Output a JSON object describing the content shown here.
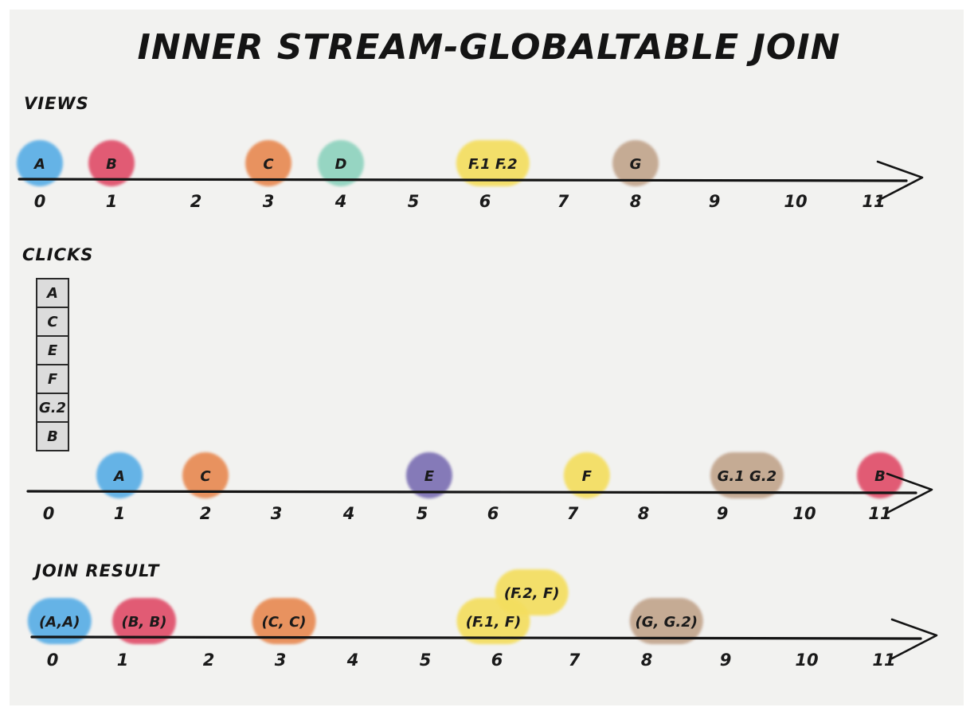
{
  "title": "Inner Stream-GlobalTABLE Join",
  "ticks": [
    "0",
    "1",
    "2",
    "3",
    "4",
    "5",
    "6",
    "7",
    "8",
    "9",
    "10",
    "11"
  ],
  "colors": {
    "blue": "#5aaee6",
    "red": "#e0506a",
    "orange": "#e88a52",
    "teal": "#8fd3bf",
    "yellow": "#f4de5e",
    "tan": "#c2a58d",
    "purple": "#7c6fb4"
  },
  "views": {
    "label": "Views",
    "events": [
      {
        "label": "A",
        "at": 0,
        "color": "blue"
      },
      {
        "label": "B",
        "at": 1,
        "color": "red"
      },
      {
        "label": "C",
        "at": 3,
        "color": "orange"
      },
      {
        "label": "D",
        "at": 4,
        "color": "teal"
      },
      {
        "label": "F.1  F.2",
        "at": 6.1,
        "color": "yellow",
        "wide": true
      },
      {
        "label": "G",
        "at": 8,
        "color": "tan"
      }
    ]
  },
  "clicks": {
    "label": "Clicks",
    "queue": [
      "A",
      "C",
      "E",
      "F",
      "G.2",
      "B"
    ],
    "events": [
      {
        "label": "A",
        "at": 1,
        "color": "blue"
      },
      {
        "label": "C",
        "at": 2,
        "color": "orange"
      },
      {
        "label": "E",
        "at": 5.1,
        "color": "purple"
      },
      {
        "label": "F",
        "at": 7.2,
        "color": "yellow"
      },
      {
        "label": "G.1  G.2",
        "at": 9.3,
        "color": "tan",
        "wide": true
      },
      {
        "label": "B",
        "at": 11,
        "color": "red"
      }
    ]
  },
  "join_result": {
    "label": "Join Result",
    "events": [
      {
        "label": "(A,A)",
        "at": 0.1,
        "color": "blue",
        "wide": true
      },
      {
        "label": "(B, B)",
        "at": 1.25,
        "color": "red",
        "wide": true
      },
      {
        "label": "(C, C)",
        "at": 3.05,
        "color": "orange",
        "wide": true
      },
      {
        "label": "(F.1, F)",
        "at": 5.95,
        "color": "yellow",
        "wide": true
      },
      {
        "label": "(F.2, F)",
        "at": 6.45,
        "color": "yellow",
        "wide": true,
        "raised": true
      },
      {
        "label": "(G, G.2)",
        "at": 8.25,
        "color": "tan",
        "wide": true
      }
    ]
  }
}
